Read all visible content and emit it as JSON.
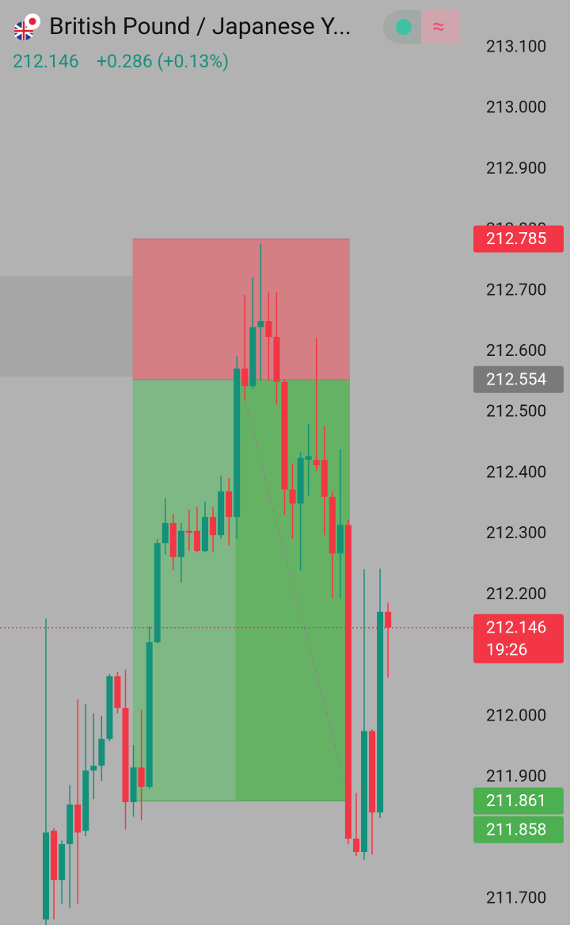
{
  "header": {
    "symbol": "British Pound / Japanese Y...",
    "price": "212.146",
    "change": "+0.286 (+0.13%)",
    "indicator": "≈"
  },
  "chart_data": {
    "type": "candlestick",
    "ylim": [
      211.657,
      213.178
    ],
    "yticks": [
      {
        "value": 213.1,
        "label": "213.100"
      },
      {
        "value": 213.0,
        "label": "213.000"
      },
      {
        "value": 212.9,
        "label": "212.900"
      },
      {
        "value": 212.8,
        "label": "212.800"
      },
      {
        "value": 212.7,
        "label": "212.700"
      },
      {
        "value": 212.6,
        "label": "212.600"
      },
      {
        "value": 212.5,
        "label": "212.500"
      },
      {
        "value": 212.4,
        "label": "212.400"
      },
      {
        "value": 212.3,
        "label": "212.300"
      },
      {
        "value": 212.2,
        "label": "212.200"
      },
      {
        "value": 212.1,
        "label": "212.100"
      },
      {
        "value": 212.0,
        "label": "212.000"
      },
      {
        "value": 211.9,
        "label": "211.900"
      },
      {
        "value": 211.8,
        "label": "211.800"
      },
      {
        "value": 211.7,
        "label": "211.700"
      }
    ],
    "up_color": "#14917a",
    "down_color": "#f23645",
    "open": [
      211.666,
      211.812,
      211.731,
      211.79,
      211.855,
      211.812,
      211.911,
      211.919,
      211.963,
      212.066,
      212.014,
      211.859,
      211.916,
      211.884,
      212.122,
      212.285,
      212.318,
      212.262,
      212.305,
      212.305,
      212.272,
      212.328,
      212.298,
      212.37,
      212.328,
      212.572,
      212.543,
      212.64,
      212.65,
      212.624,
      212.55,
      212.373,
      212.35,
      212.422,
      212.422,
      212.422,
      212.361,
      212.268,
      212.315,
      211.799,
      211.777,
      211.976,
      211.842,
      212.172
    ],
    "high": [
      212.161,
      211.816,
      211.796,
      211.887,
      212.028,
      212.02,
      212.005,
      212.001,
      212.07,
      212.073,
      212.077,
      211.953,
      212.011,
      212.148,
      212.292,
      212.359,
      212.333,
      212.318,
      212.34,
      212.344,
      212.353,
      212.344,
      212.396,
      212.392,
      212.592,
      212.693,
      212.722,
      212.777,
      212.698,
      212.698,
      212.555,
      212.416,
      212.435,
      212.481,
      212.622,
      212.477,
      212.37,
      212.439,
      212.324,
      211.874,
      212.242,
      211.979,
      212.243,
      212.187
    ],
    "low": [
      211.657,
      211.666,
      211.692,
      211.685,
      211.692,
      211.803,
      211.864,
      211.894,
      211.959,
      212.005,
      211.814,
      211.835,
      211.829,
      211.881,
      212.12,
      212.266,
      212.24,
      212.22,
      212.272,
      212.27,
      212.27,
      212.27,
      212.292,
      212.281,
      212.292,
      212.52,
      212.539,
      212.552,
      212.552,
      212.513,
      212.331,
      212.292,
      212.24,
      212.363,
      212.403,
      212.298,
      212.194,
      212.194,
      211.79,
      211.77,
      211.764,
      211.773,
      211.833,
      212.064
    ],
    "close": [
      211.809,
      211.731,
      211.79,
      211.855,
      211.809,
      211.911,
      211.919,
      211.963,
      212.066,
      212.014,
      211.859,
      211.916,
      211.884,
      212.122,
      212.285,
      212.318,
      212.262,
      212.305,
      212.302,
      212.272,
      212.328,
      212.298,
      212.37,
      212.328,
      212.572,
      212.543,
      212.64,
      212.65,
      212.624,
      212.55,
      212.373,
      212.35,
      212.425,
      212.428,
      212.413,
      212.361,
      212.268,
      212.315,
      211.799,
      211.777,
      211.976,
      211.842,
      212.172,
      212.146
    ],
    "position": {
      "stop": {
        "value": 212.785,
        "label": "212.785"
      },
      "entry": {
        "value": 212.554,
        "label": "212.554"
      },
      "target": {
        "value": 211.861,
        "label": "211.861"
      }
    },
    "marker": {
      "value": 211.858,
      "label": "211.858"
    },
    "current": {
      "value": 212.146,
      "label": "212.146",
      "countdown": "19:26"
    },
    "zone": [
      212.724,
      212.559
    ],
    "trend_line": [
      212.52,
      211.87
    ]
  }
}
